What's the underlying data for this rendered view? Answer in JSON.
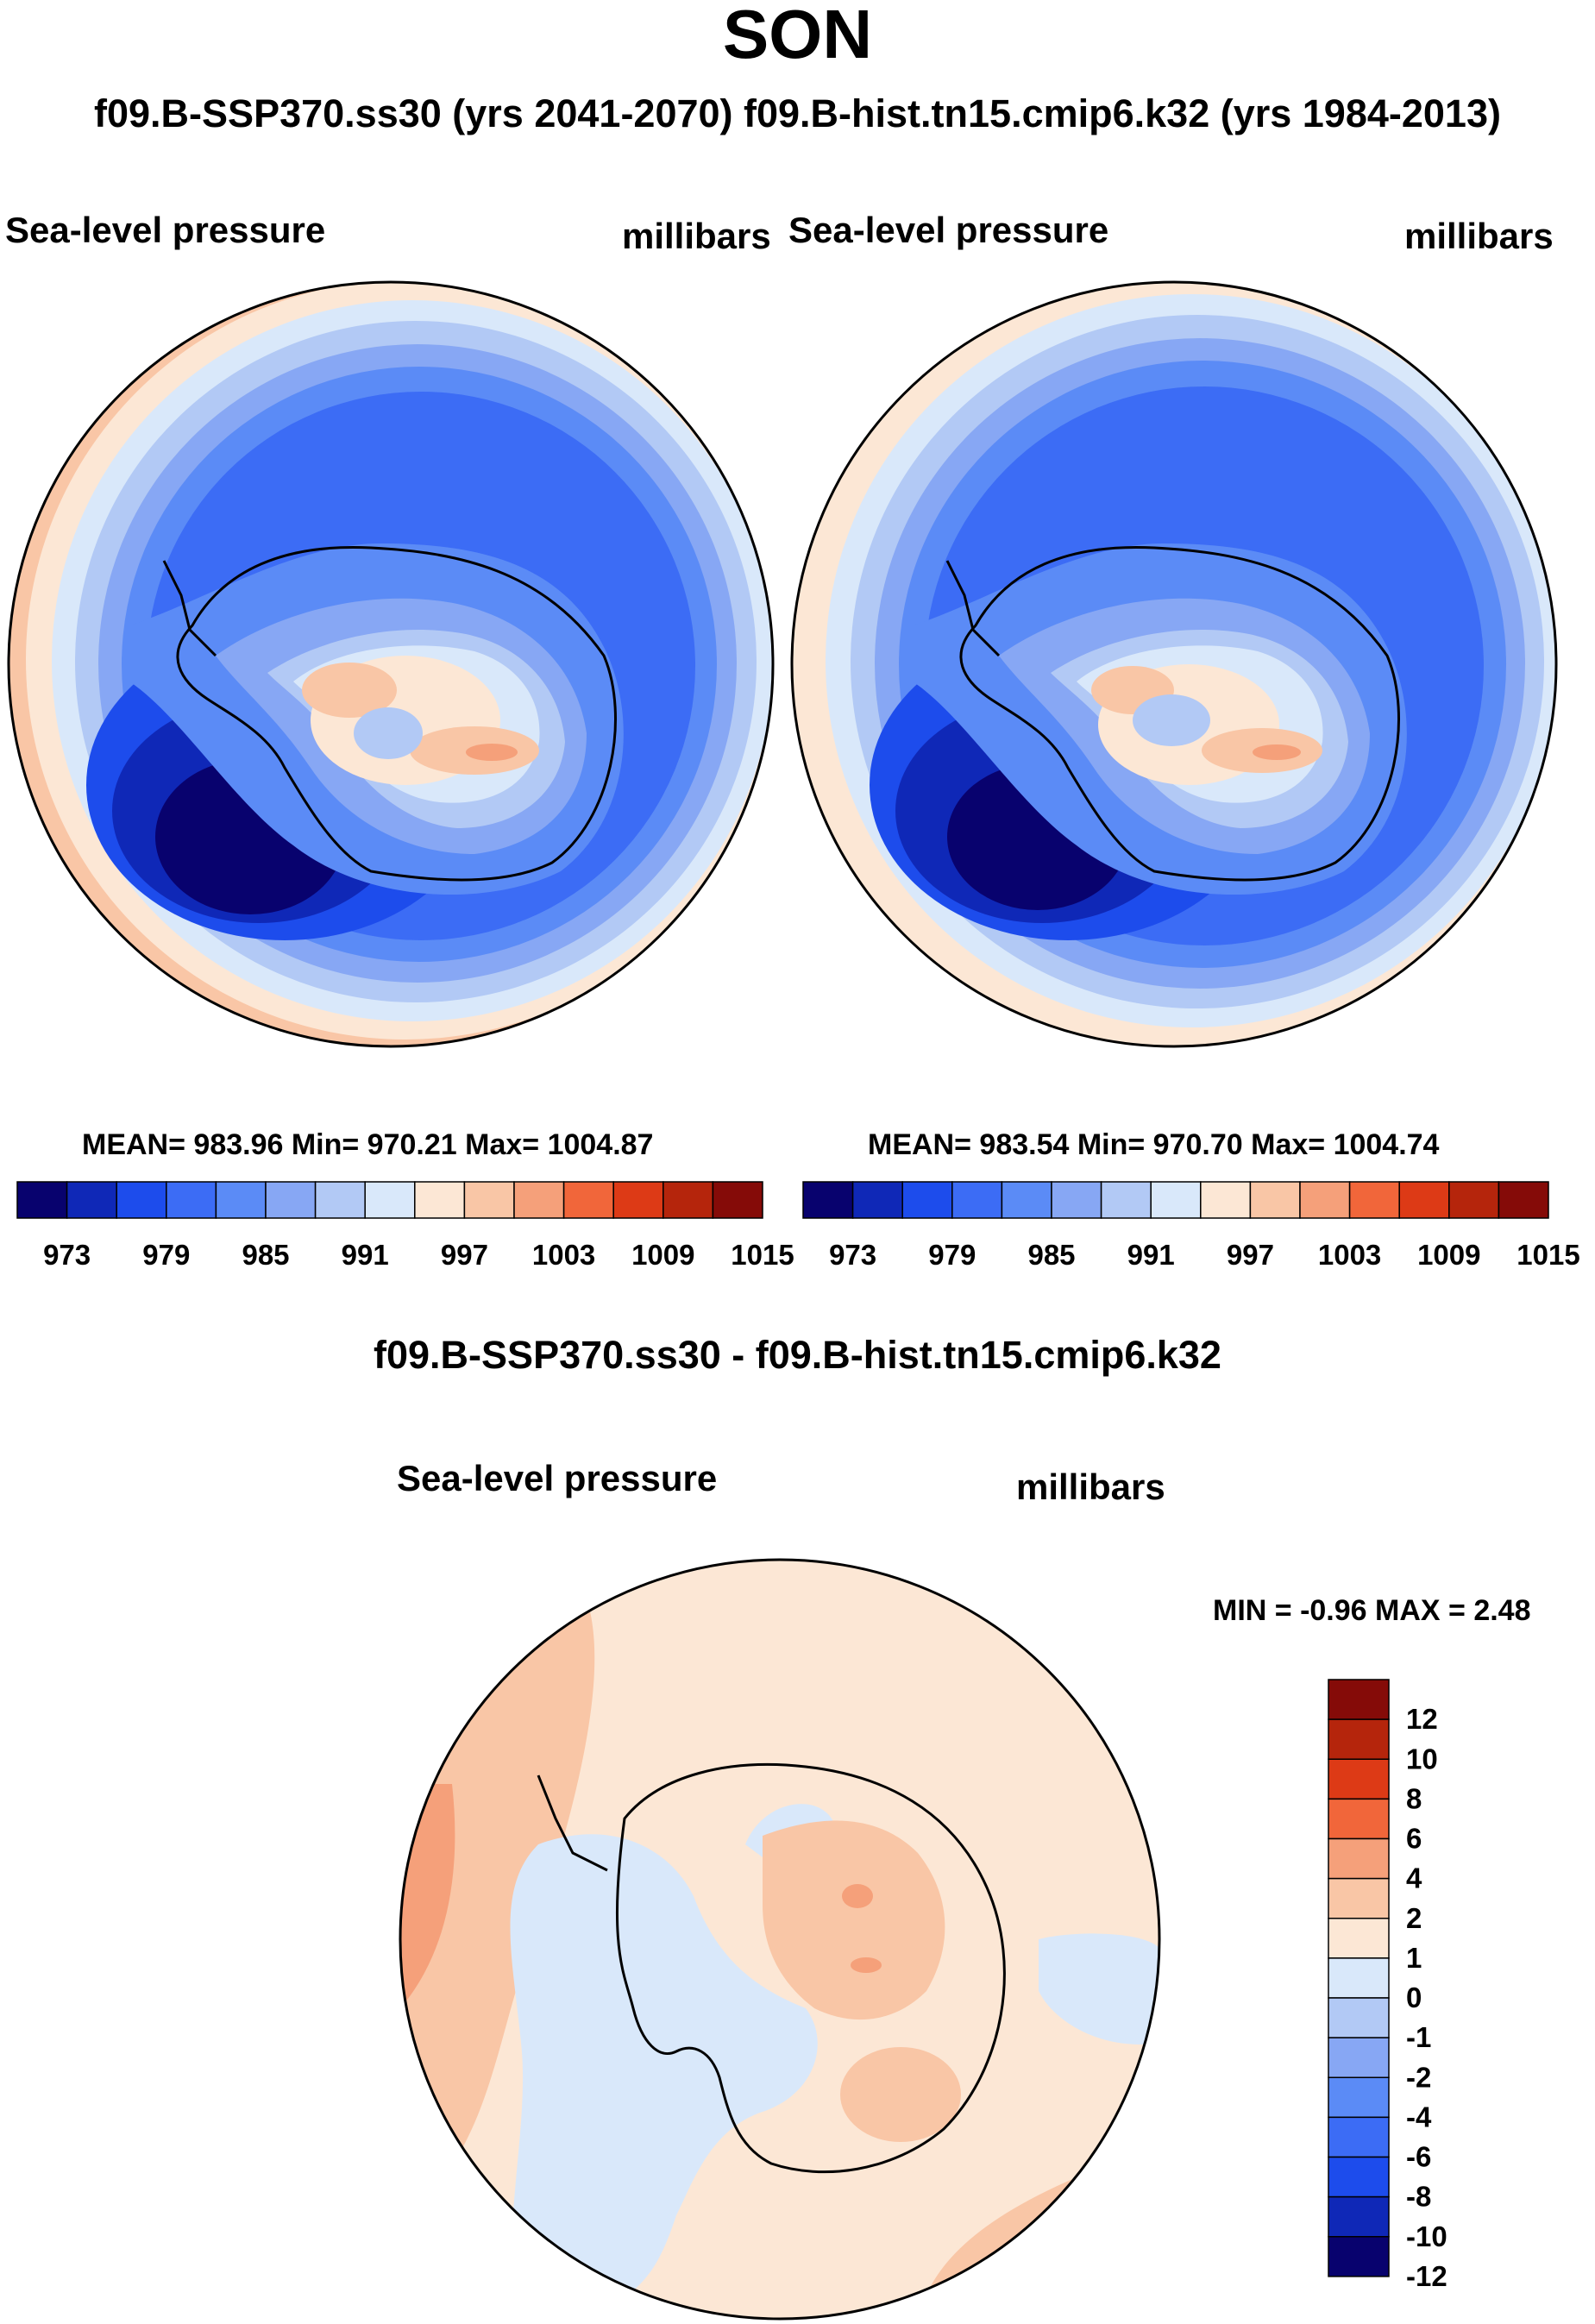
{
  "figure": {
    "season": "SON",
    "subtitle": "f09.B-SSP370.ss30 (yrs 2041-2070)  f09.B-hist.tn15.cmip6.k32 (yrs 1984-2013)",
    "diff_title": "f09.B-SSP370.ss30 - f09.B-hist.tn15.cmip6.k32"
  },
  "chart_data": [
    {
      "type": "heatmap",
      "projection": "south polar stereographic",
      "panel": "left",
      "left_label": "Sea-level pressure",
      "right_label": "millibars",
      "stats": {
        "mean": "983.96",
        "min": "970.21",
        "max": "1004.87",
        "text": "MEAN= 983.96  Min= 970.21  Max= 1004.87"
      },
      "levels": [
        973,
        976,
        979,
        982,
        985,
        988,
        991,
        994,
        997,
        1000,
        1003,
        1006,
        1009,
        1012,
        1015
      ],
      "tick_labels": [
        "973",
        "979",
        "985",
        "991",
        "997",
        "1003",
        "1009",
        "1015"
      ]
    },
    {
      "type": "heatmap",
      "projection": "south polar stereographic",
      "panel": "right",
      "left_label": "Sea-level pressure",
      "right_label": "millibars",
      "stats": {
        "mean": "983.54",
        "min": "970.70",
        "max": "1004.74",
        "text": "MEAN= 983.54  Min= 970.70  Max= 1004.74"
      },
      "levels": [
        973,
        976,
        979,
        982,
        985,
        988,
        991,
        994,
        997,
        1000,
        1003,
        1006,
        1009,
        1012,
        1015
      ],
      "tick_labels": [
        "973",
        "979",
        "985",
        "991",
        "997",
        "1003",
        "1009",
        "1015"
      ]
    },
    {
      "type": "heatmap",
      "projection": "south polar stereographic",
      "panel": "difference",
      "left_label": "Sea-level pressure",
      "right_label": "millibars",
      "stats": {
        "min": "-0.96",
        "max": "2.48",
        "text": "MIN =  -0.96 MAX =   2.48"
      },
      "levels": [
        -12,
        -10,
        -8,
        -6,
        -4,
        -2,
        -1,
        0,
        1,
        2,
        4,
        6,
        8,
        10,
        12
      ],
      "tick_labels": [
        "12",
        "10",
        "8",
        "6",
        "4",
        "2",
        "1",
        "0",
        "-1",
        "-2",
        "-4",
        "-6",
        "-8",
        "-10",
        "-12"
      ]
    }
  ],
  "colors": {
    "scale": [
      "#08026e",
      "#0f28b7",
      "#1d4cec",
      "#3c6cf5",
      "#5b8bf6",
      "#87a7f4",
      "#b2c9f5",
      "#d9e8fa",
      "#fce7d5",
      "#f9c6a6",
      "#f5a07a",
      "#f1663a",
      "#dd3a16",
      "#b5250c",
      "#850b08"
    ],
    "coast": "#000000"
  }
}
